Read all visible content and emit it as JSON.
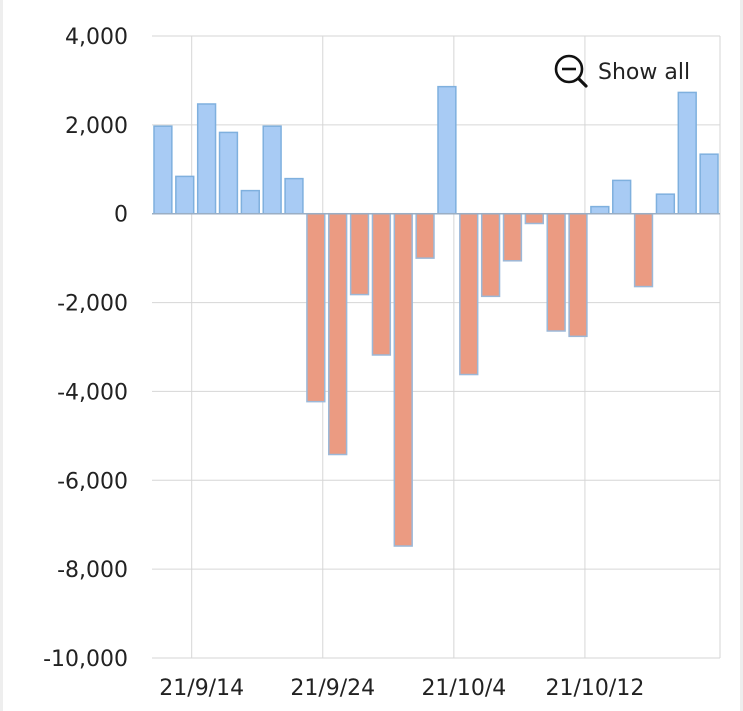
{
  "toolbar": {
    "show_all_label": "Show all",
    "zoom_out_icon": "zoom-out-icon"
  },
  "colors": {
    "positive_fill": "#a8cbf4",
    "positive_stroke": "#7fb0de",
    "negative_fill": "#eb9b82",
    "negative_stroke": "#9bb8d8",
    "grid": "#d6d6d6",
    "axis": "#9aaec4"
  },
  "chart_data": {
    "type": "bar",
    "title": "",
    "xlabel": "",
    "ylabel": "",
    "ylim": [
      -10000,
      4000
    ],
    "yticks": [
      4000,
      2000,
      0,
      -2000,
      -4000,
      -6000,
      -8000,
      -10000
    ],
    "ytick_labels": [
      "4,000",
      "2,000",
      "0",
      "-2,000",
      "-4,000",
      "-6,000",
      "-8,000",
      "-10,000"
    ],
    "xtick_labels": [
      "21/9/14",
      "21/9/24",
      "21/10/4",
      "21/10/12"
    ],
    "xtick_index": [
      2,
      8,
      14,
      20
    ],
    "grid": true,
    "legend": "none",
    "values": [
      1970,
      840,
      2470,
      1830,
      520,
      1970,
      790,
      -4230,
      -5420,
      -1820,
      -3180,
      -7480,
      -1000,
      2860,
      -3620,
      -1860,
      -1060,
      -220,
      -2640,
      -2760,
      160,
      750,
      -1640,
      440,
      2730,
      1340
    ]
  }
}
